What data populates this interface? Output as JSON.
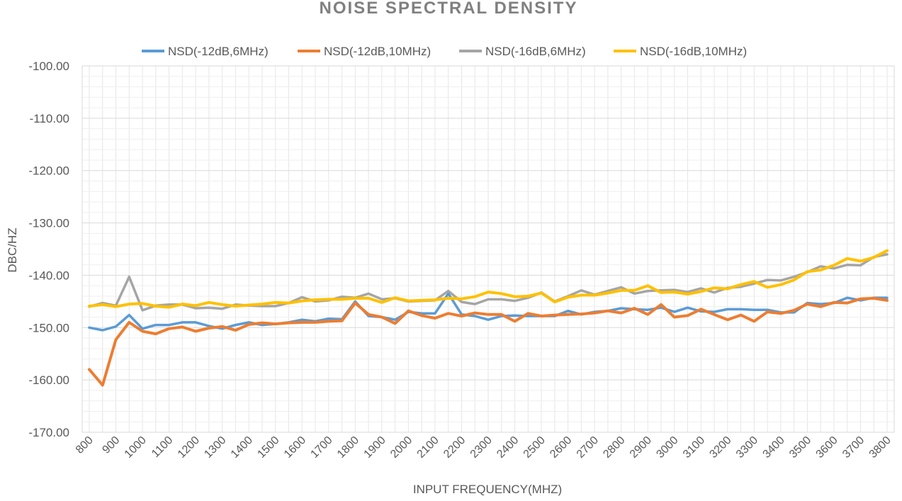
{
  "chart_data": {
    "type": "line",
    "title": "NOISE SPECTRAL DENSITY",
    "xlabel": "INPUT FREQUENCY(MHZ)",
    "ylabel": "DBC/HZ",
    "ylim": [
      -170,
      -100
    ],
    "yticks": [
      -100,
      -110,
      -120,
      -130,
      -140,
      -150,
      -160,
      -170
    ],
    "ytick_labels": [
      "-100.00",
      "-110.00",
      "-120.00",
      "-130.00",
      "-140.00",
      "-150.00",
      "-160.00",
      "-170.00"
    ],
    "xlim": [
      800,
      3800
    ],
    "xticks": [
      800,
      900,
      1000,
      1100,
      1200,
      1300,
      1400,
      1500,
      1600,
      1700,
      1800,
      1900,
      2000,
      2100,
      2200,
      2300,
      2400,
      2500,
      2600,
      2700,
      2800,
      2900,
      3000,
      3100,
      3200,
      3300,
      3400,
      3500,
      3600,
      3700,
      3800
    ],
    "grid": true,
    "legend_position": "top",
    "x": [
      800,
      850,
      900,
      950,
      1000,
      1050,
      1100,
      1150,
      1200,
      1250,
      1300,
      1350,
      1400,
      1450,
      1500,
      1550,
      1600,
      1650,
      1700,
      1750,
      1800,
      1850,
      1900,
      1950,
      2000,
      2050,
      2100,
      2150,
      2200,
      2250,
      2300,
      2350,
      2400,
      2450,
      2500,
      2550,
      2600,
      2650,
      2700,
      2750,
      2800,
      2850,
      2900,
      2950,
      3000,
      3050,
      3100,
      3150,
      3200,
      3250,
      3300,
      3350,
      3400,
      3450,
      3500,
      3550,
      3600,
      3650,
      3700,
      3750,
      3800
    ],
    "series": [
      {
        "name": "NSD(-12dB,6MHz)",
        "color": "#5B9BD5",
        "values": [
          -150.0,
          -150.5,
          -149.8,
          -147.6,
          -150.2,
          -149.5,
          -149.5,
          -149.0,
          -149.0,
          -149.7,
          -150.2,
          -149.5,
          -149.0,
          -149.5,
          -149.3,
          -149.0,
          -148.5,
          -148.8,
          -148.3,
          -148.4,
          -145.0,
          -147.8,
          -148.0,
          -148.5,
          -147.0,
          -147.3,
          -147.3,
          -143.5,
          -147.5,
          -147.8,
          -148.5,
          -147.8,
          -147.7,
          -147.8,
          -147.8,
          -147.8,
          -146.8,
          -147.5,
          -147.0,
          -146.8,
          -146.3,
          -146.5,
          -146.6,
          -146.2,
          -147.0,
          -146.2,
          -146.9,
          -147.0,
          -146.5,
          -146.5,
          -146.6,
          -146.6,
          -147.1,
          -147.1,
          -145.3,
          -145.5,
          -145.3,
          -144.3,
          -144.8,
          -144.3,
          -144.3
        ]
      },
      {
        "name": "NSD(-12dB,10MHz)",
        "color": "#ED7D31",
        "values": [
          -158.0,
          -161.0,
          -152.3,
          -149.0,
          -150.7,
          -151.2,
          -150.2,
          -149.9,
          -150.7,
          -150.1,
          -149.8,
          -150.5,
          -149.4,
          -149.1,
          -149.3,
          -149.1,
          -149.0,
          -149.0,
          -148.8,
          -148.7,
          -145.3,
          -147.5,
          -148.0,
          -149.2,
          -146.8,
          -147.7,
          -148.2,
          -147.3,
          -147.8,
          -147.2,
          -147.5,
          -147.5,
          -148.8,
          -147.3,
          -147.8,
          -147.6,
          -147.5,
          -147.4,
          -147.2,
          -146.8,
          -147.2,
          -146.3,
          -147.5,
          -145.6,
          -148.0,
          -147.7,
          -146.5,
          -147.5,
          -148.5,
          -147.6,
          -148.8,
          -147.0,
          -147.3,
          -146.7,
          -145.5,
          -146.0,
          -145.2,
          -145.3,
          -144.5,
          -144.4,
          -144.8
        ]
      },
      {
        "name": "NSD(-16dB,6MHz)",
        "color": "#A5A5A5",
        "values": [
          -146.0,
          -145.3,
          -145.8,
          -140.3,
          -146.7,
          -145.8,
          -145.6,
          -145.6,
          -146.3,
          -146.2,
          -146.4,
          -145.6,
          -145.8,
          -145.9,
          -145.9,
          -145.3,
          -144.2,
          -145.0,
          -144.8,
          -144.1,
          -144.3,
          -143.5,
          -144.6,
          -144.4,
          -145.0,
          -144.9,
          -144.8,
          -143.0,
          -145.1,
          -145.5,
          -144.6,
          -144.6,
          -144.9,
          -144.3,
          -143.3,
          -145.0,
          -144.0,
          -142.9,
          -143.7,
          -143.0,
          -142.3,
          -143.5,
          -143.0,
          -142.9,
          -142.8,
          -143.2,
          -142.5,
          -143.3,
          -142.4,
          -142.2,
          -141.6,
          -140.9,
          -141.0,
          -140.3,
          -139.4,
          -138.3,
          -138.7,
          -138.0,
          -138.1,
          -136.5,
          -136.0
        ]
      },
      {
        "name": "NSD(-16dB,10MHz)",
        "color": "#FFC000",
        "values": [
          -145.9,
          -145.6,
          -146.0,
          -145.5,
          -145.4,
          -145.9,
          -146.1,
          -145.5,
          -145.8,
          -145.2,
          -145.6,
          -145.9,
          -145.7,
          -145.5,
          -145.2,
          -145.3,
          -144.9,
          -144.7,
          -144.6,
          -144.6,
          -144.4,
          -144.4,
          -145.2,
          -144.3,
          -144.9,
          -144.8,
          -144.7,
          -144.4,
          -144.5,
          -144.1,
          -143.2,
          -143.5,
          -144.1,
          -144.0,
          -143.4,
          -145.1,
          -144.2,
          -143.8,
          -143.8,
          -143.4,
          -142.9,
          -142.9,
          -142.0,
          -143.3,
          -143.2,
          -143.6,
          -143.1,
          -142.4,
          -142.6,
          -141.8,
          -141.2,
          -142.3,
          -141.8,
          -140.9,
          -139.3,
          -139.0,
          -138.1,
          -136.8,
          -137.3,
          -136.6,
          -135.3
        ]
      }
    ]
  },
  "colors": {
    "gridline": "#e6e6e6",
    "title": "#808080",
    "axis_text": "#595959"
  }
}
